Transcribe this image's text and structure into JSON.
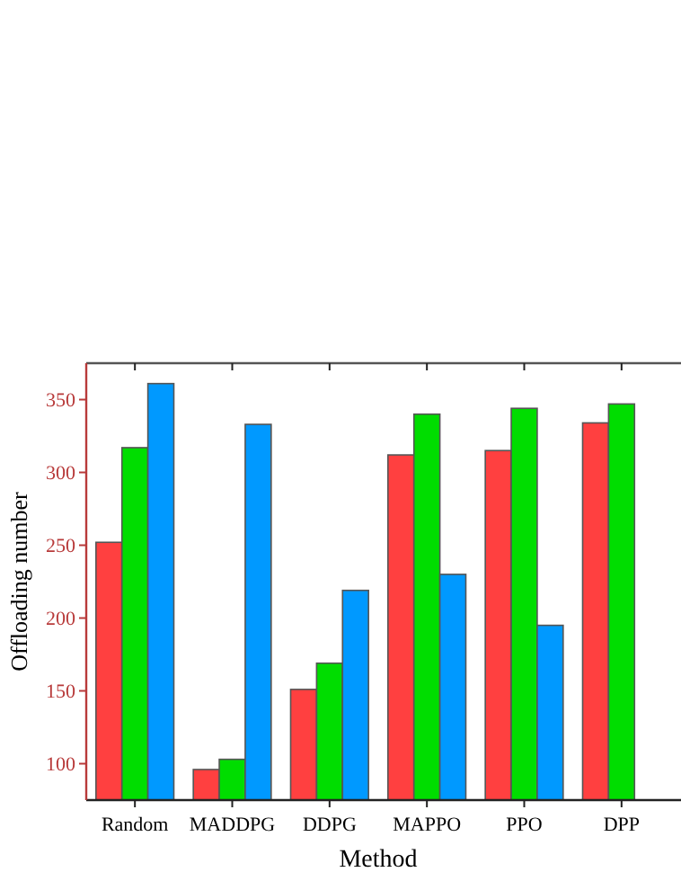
{
  "chart_data": {
    "type": "bar",
    "xlabel": "Method",
    "ylabel": "Offloading number",
    "categories": [
      "Random",
      "MADDPG",
      "DDPG",
      "MAPPO",
      "PPO",
      "DPP"
    ],
    "series": [
      {
        "color": "#ff4040",
        "values": [
          252,
          96,
          151,
          312,
          315,
          334
        ]
      },
      {
        "color": "#00dd00",
        "values": [
          317,
          103,
          169,
          340,
          344,
          347
        ]
      },
      {
        "color": "#0099ff",
        "values": [
          361,
          333,
          219,
          230,
          195,
          null
        ]
      }
    ],
    "ylim": [
      75,
      375
    ],
    "yticks": [
      100,
      150,
      200,
      250,
      300,
      350
    ]
  }
}
